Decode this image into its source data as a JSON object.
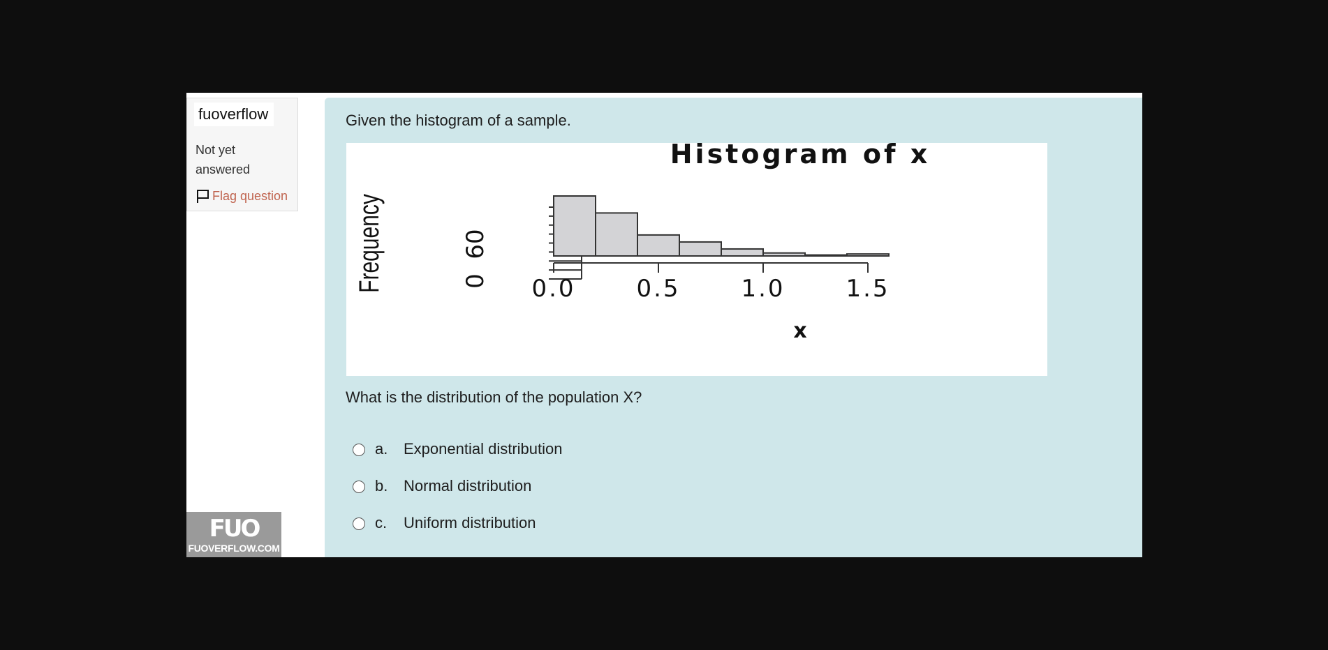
{
  "sidebar": {
    "site_name": "fuoverflow",
    "state": "Not yet answered",
    "flag_label": "Flag question",
    "logo_mark": "FUO",
    "logo_url": "FUOVERFLOW.COM"
  },
  "question": {
    "intro": "Given the histogram of a sample.",
    "prompt": "What is the distribution of the population X?",
    "answers": [
      {
        "letter": "a.",
        "text": "Exponential distribution"
      },
      {
        "letter": "b.",
        "text": "Normal distribution"
      },
      {
        "letter": "c.",
        "text": "Uniform distribution"
      }
    ]
  },
  "chart_data": {
    "type": "bar",
    "title": "Histogram of x",
    "xlabel": "x",
    "ylabel": "Frequency",
    "bin_edges": [
      0.0,
      0.2,
      0.4,
      0.6,
      0.8,
      1.0,
      1.2,
      1.4,
      1.6
    ],
    "values": [
      60,
      43,
      21,
      14,
      7,
      3,
      1,
      2
    ],
    "xticks": [
      "0.0",
      "0.5",
      "1.0",
      "1.5"
    ],
    "yticks": [
      "0",
      "60"
    ],
    "xlim": [
      0.0,
      1.6
    ],
    "ylim": [
      0,
      60
    ],
    "bar_color": "#d3d3d6",
    "grid": false
  }
}
